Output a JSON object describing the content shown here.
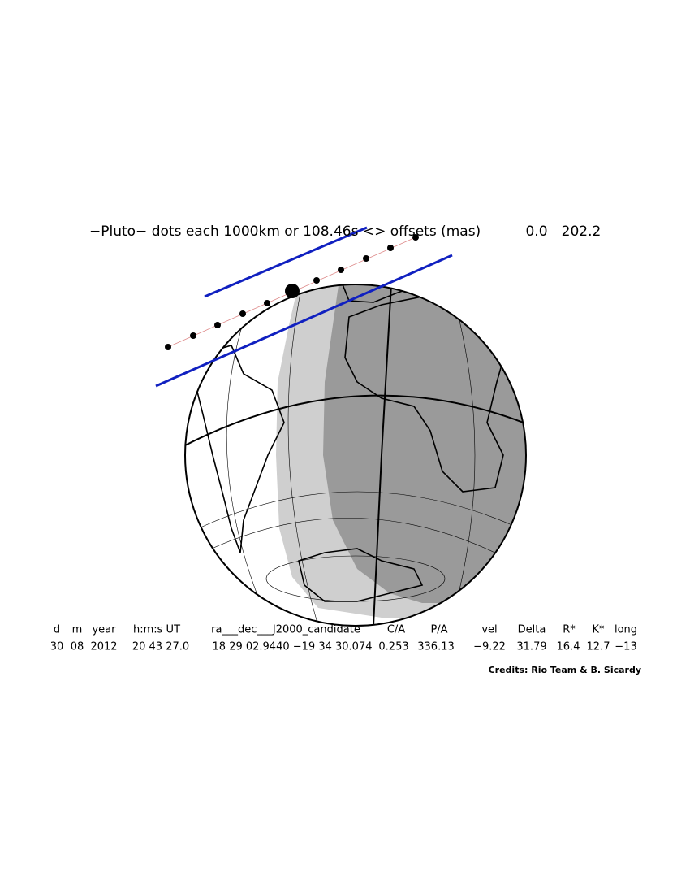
{
  "header": {
    "title": "−Pluto− dots each 1000km or 108.46s <> offsets (mas)",
    "offset_x": "0.0",
    "offset_y": "202.2"
  },
  "table": {
    "columns": [
      "d",
      "m",
      "year",
      "h:m:s UT",
      "ra___dec___J2000_candidate",
      "C/A",
      "P/A",
      "vel",
      "Delta",
      "R*",
      "K*",
      "long"
    ],
    "values": [
      "30",
      "08",
      "2012",
      "20 43 27.0",
      "18 29 02.9440 −19 34 30.074",
      "0.253",
      "336.13",
      "−9.22",
      "31.79",
      "16.4",
      "12.7",
      "−13"
    ]
  },
  "credits": "Credits: Rio Team & B. Sicardy"
}
